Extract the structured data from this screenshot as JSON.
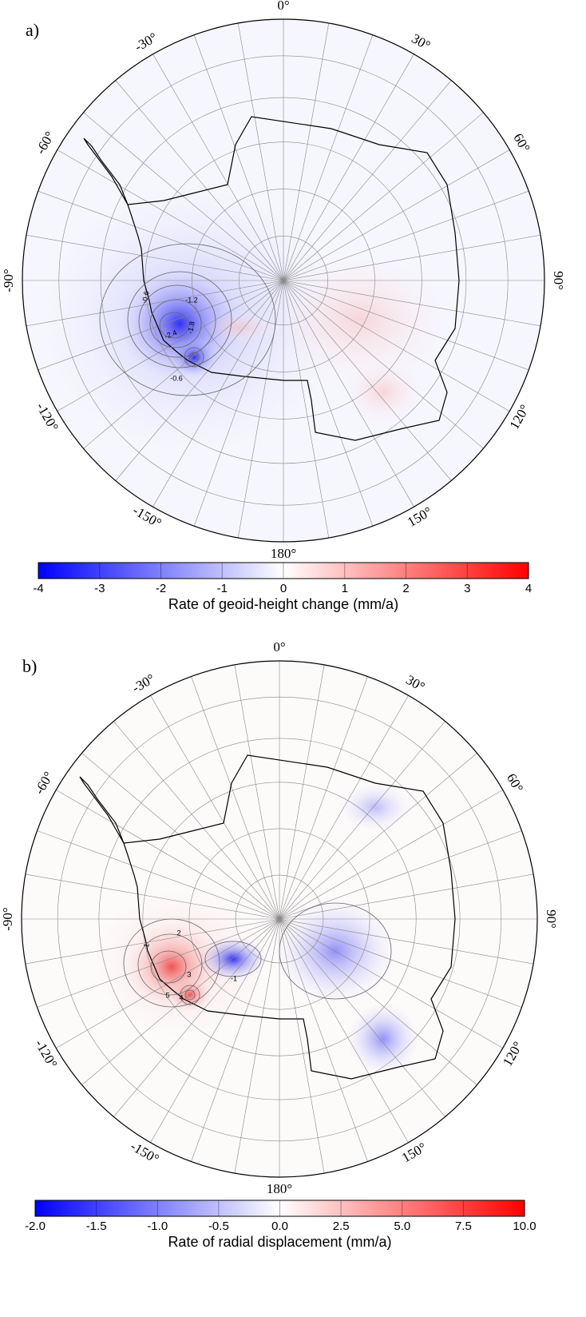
{
  "panels": [
    {
      "label": "a)",
      "lon_labels": [
        {
          "value": 0,
          "label": "0°"
        },
        {
          "value": 30,
          "label": "30°"
        },
        {
          "value": 60,
          "label": "60°"
        },
        {
          "value": 90,
          "label": "90°"
        },
        {
          "value": 120,
          "label": "120°"
        },
        {
          "value": 150,
          "label": "150°"
        },
        {
          "value": 180,
          "label": "180°"
        },
        {
          "value": -150,
          "label": "-150°"
        },
        {
          "value": -120,
          "label": "-120°"
        },
        {
          "value": -90,
          "label": "-90°"
        },
        {
          "value": -60,
          "label": "-60°"
        },
        {
          "value": -30,
          "label": "-30°"
        }
      ],
      "contour_labels": [
        -0.6,
        -1.2,
        -1.8,
        -2.4,
        -0.6
      ],
      "colorbar": {
        "ticks": [
          -4,
          -3,
          -2,
          -1,
          0,
          1,
          2,
          3,
          4
        ],
        "label": "Rate of geoid-height change (mm/a)"
      }
    },
    {
      "label": "b)",
      "lon_labels": [
        {
          "value": 0,
          "label": "0°"
        },
        {
          "value": 30,
          "label": "30°"
        },
        {
          "value": 60,
          "label": "60°"
        },
        {
          "value": 90,
          "label": "90°"
        },
        {
          "value": 120,
          "label": "120°"
        },
        {
          "value": 150,
          "label": "150°"
        },
        {
          "value": 180,
          "label": "180°"
        },
        {
          "value": -150,
          "label": "-150°"
        },
        {
          "value": -120,
          "label": "-120°"
        },
        {
          "value": -90,
          "label": "-90°"
        },
        {
          "value": -60,
          "label": "-60°"
        },
        {
          "value": -30,
          "label": "-30°"
        }
      ],
      "contour_labels": [
        1,
        2,
        3,
        5,
        4,
        -1
      ],
      "colorbar": {
        "ticks": [
          {
            "value": -2,
            "label": "-2.0"
          },
          {
            "value": -1.5,
            "label": "-1.5"
          },
          {
            "value": -1,
            "label": "-1.0"
          },
          {
            "value": -0.5,
            "label": "-0.5"
          },
          {
            "value": 0,
            "label": "0.0"
          },
          {
            "value": 2.5,
            "label": "2.5"
          },
          {
            "value": 5,
            "label": "5.0"
          },
          {
            "value": 7.5,
            "label": "7.5"
          },
          {
            "value": 10,
            "label": "10.0"
          }
        ],
        "label": "Rate of radial displacement (mm/a)"
      }
    }
  ]
}
